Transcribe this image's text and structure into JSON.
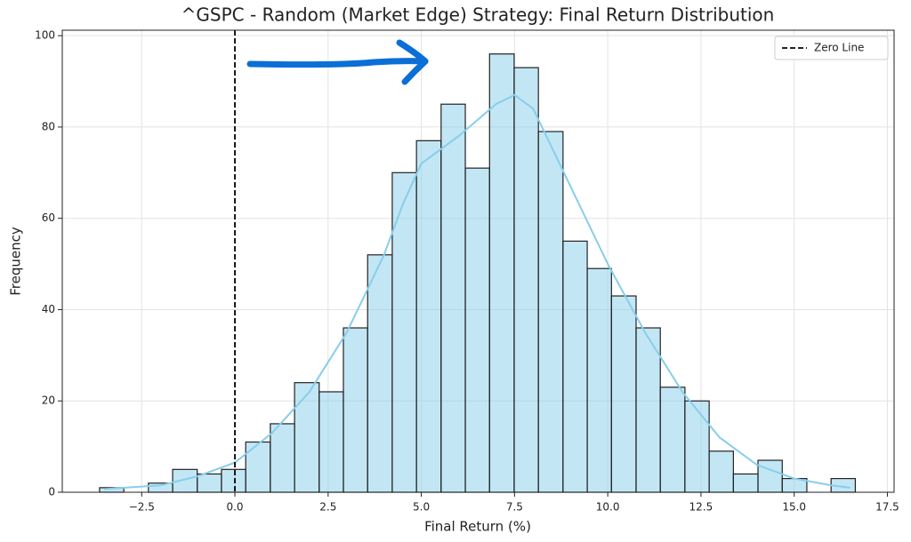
{
  "chart_data": {
    "type": "histogram",
    "title": "^GSPC - Random (Market Edge) Strategy: Final Return Distribution",
    "x_label": "Final Return (%)",
    "y_label": "Frequency",
    "bins": [
      -3.63,
      -2.98,
      -2.32,
      -1.67,
      -1.01,
      -0.36,
      0.29,
      0.95,
      1.6,
      2.26,
      2.91,
      3.56,
      4.22,
      4.87,
      5.53,
      6.18,
      6.83,
      7.49,
      8.14,
      8.8,
      9.45,
      10.1,
      10.76,
      11.41,
      12.07,
      12.72,
      13.37,
      14.03,
      14.68,
      15.34,
      15.99,
      16.64
    ],
    "values": [
      1,
      0,
      2,
      5,
      4,
      5,
      11,
      15,
      24,
      22,
      36,
      52,
      70,
      77,
      85,
      71,
      96,
      93,
      79,
      55,
      49,
      43,
      36,
      23,
      20,
      9,
      4,
      7,
      3,
      0,
      3
    ],
    "color": "#87ceeb",
    "alpha": 0.5,
    "edge_color": "#222222",
    "kde": {
      "color": "#87ceeb",
      "x": [
        -3.5,
        -2,
        -1,
        0,
        1,
        2,
        3,
        4,
        4.5,
        5,
        6,
        7,
        7.5,
        8,
        9,
        10,
        11,
        12,
        13,
        14,
        15,
        16,
        16.5
      ],
      "values": [
        0.7,
        1.5,
        3.5,
        6.5,
        13,
        22,
        35,
        52,
        63,
        72,
        78,
        85,
        87,
        84,
        67,
        50,
        35,
        22,
        12,
        6,
        3,
        1.5,
        1
      ]
    },
    "vlines": [
      {
        "x": 0,
        "label": "Zero Line",
        "color": "#000000",
        "dashed": true
      }
    ],
    "legend": "upper right",
    "grid": true,
    "xlim": [
      -4.63,
      17.68
    ],
    "ylim": [
      0,
      101.2
    ],
    "xticks": [
      {
        "value": -2.5,
        "label": "−2.5"
      },
      {
        "value": 0,
        "label": "0.0"
      },
      {
        "value": 2.5,
        "label": "2.5"
      },
      {
        "value": 5,
        "label": "5.0"
      },
      {
        "value": 7.5,
        "label": "7.5"
      },
      {
        "value": 10,
        "label": "10.0"
      },
      {
        "value": 12.5,
        "label": "12.5"
      },
      {
        "value": 15,
        "label": "15.0"
      },
      {
        "value": 17.5,
        "label": "17.5"
      }
    ],
    "yticks": [
      0,
      20,
      40,
      60,
      80,
      100
    ]
  }
}
